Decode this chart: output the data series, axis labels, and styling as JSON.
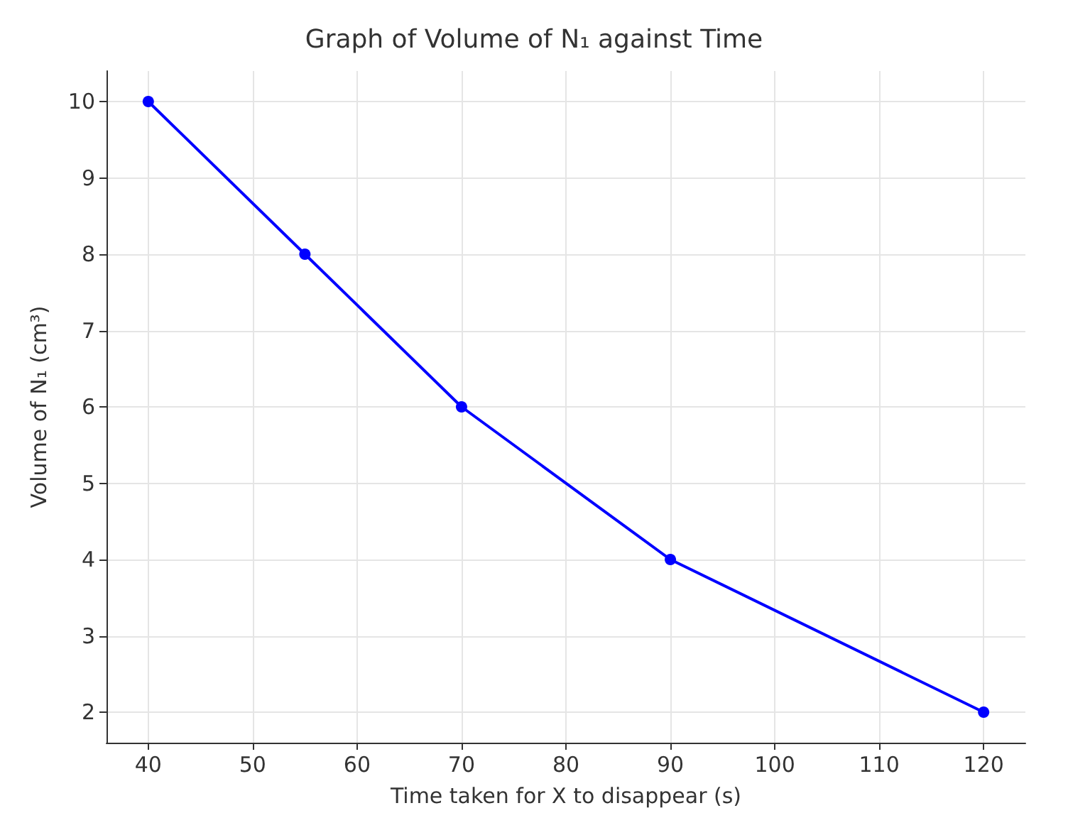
{
  "chart_data": {
    "type": "line",
    "title": "Graph of Volume of N₁ against Time",
    "xlabel": "Time taken for X to disappear (s)",
    "ylabel": "Volume of N₁ (cm³)",
    "x": [
      40,
      55,
      70,
      90,
      120
    ],
    "series": [
      {
        "color": "#0000ff",
        "values": [
          10,
          8,
          6,
          4,
          2
        ]
      }
    ],
    "xlim": [
      36,
      124
    ],
    "xticks": [
      40,
      50,
      60,
      70,
      80,
      90,
      100,
      110,
      120
    ],
    "ylim": [
      1.6,
      10.4
    ],
    "yticks": [
      2,
      3,
      4,
      5,
      6,
      7,
      8,
      9,
      10
    ],
    "grid": true,
    "marker": "circle",
    "line_style": "solid"
  }
}
